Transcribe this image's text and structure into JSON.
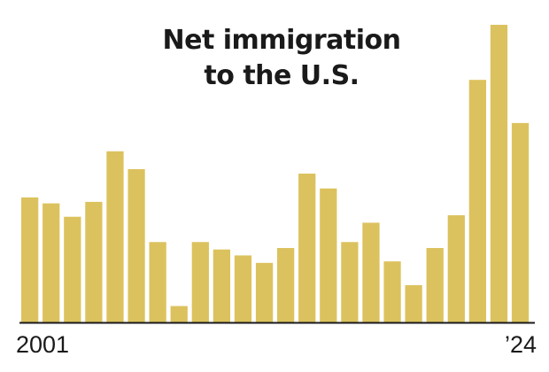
{
  "chart_data": {
    "type": "bar",
    "title_lines": [
      "Net immigration",
      "to the U.S."
    ],
    "categories": [
      "2001",
      "2002",
      "2003",
      "2004",
      "2005",
      "2006",
      "2007",
      "2008",
      "2009",
      "2010",
      "2011",
      "2012",
      "2013",
      "2014",
      "2015",
      "2016",
      "2017",
      "2018",
      "2019",
      "2020",
      "2021",
      "2022",
      "2023",
      "2024"
    ],
    "values": [
      42,
      40,
      35.5,
      40.5,
      57.5,
      51.5,
      27,
      5.5,
      27,
      24.5,
      22.5,
      20,
      25,
      50,
      45,
      27,
      33.5,
      20.5,
      12.5,
      25,
      36,
      81.5,
      100,
      67
    ],
    "tick_labels": {
      "first": "2001",
      "last": "’24"
    },
    "ylim": [
      0,
      100
    ],
    "bar_color": "#dcc25e",
    "axis_color": "#1a1a1a",
    "grid": false
  }
}
